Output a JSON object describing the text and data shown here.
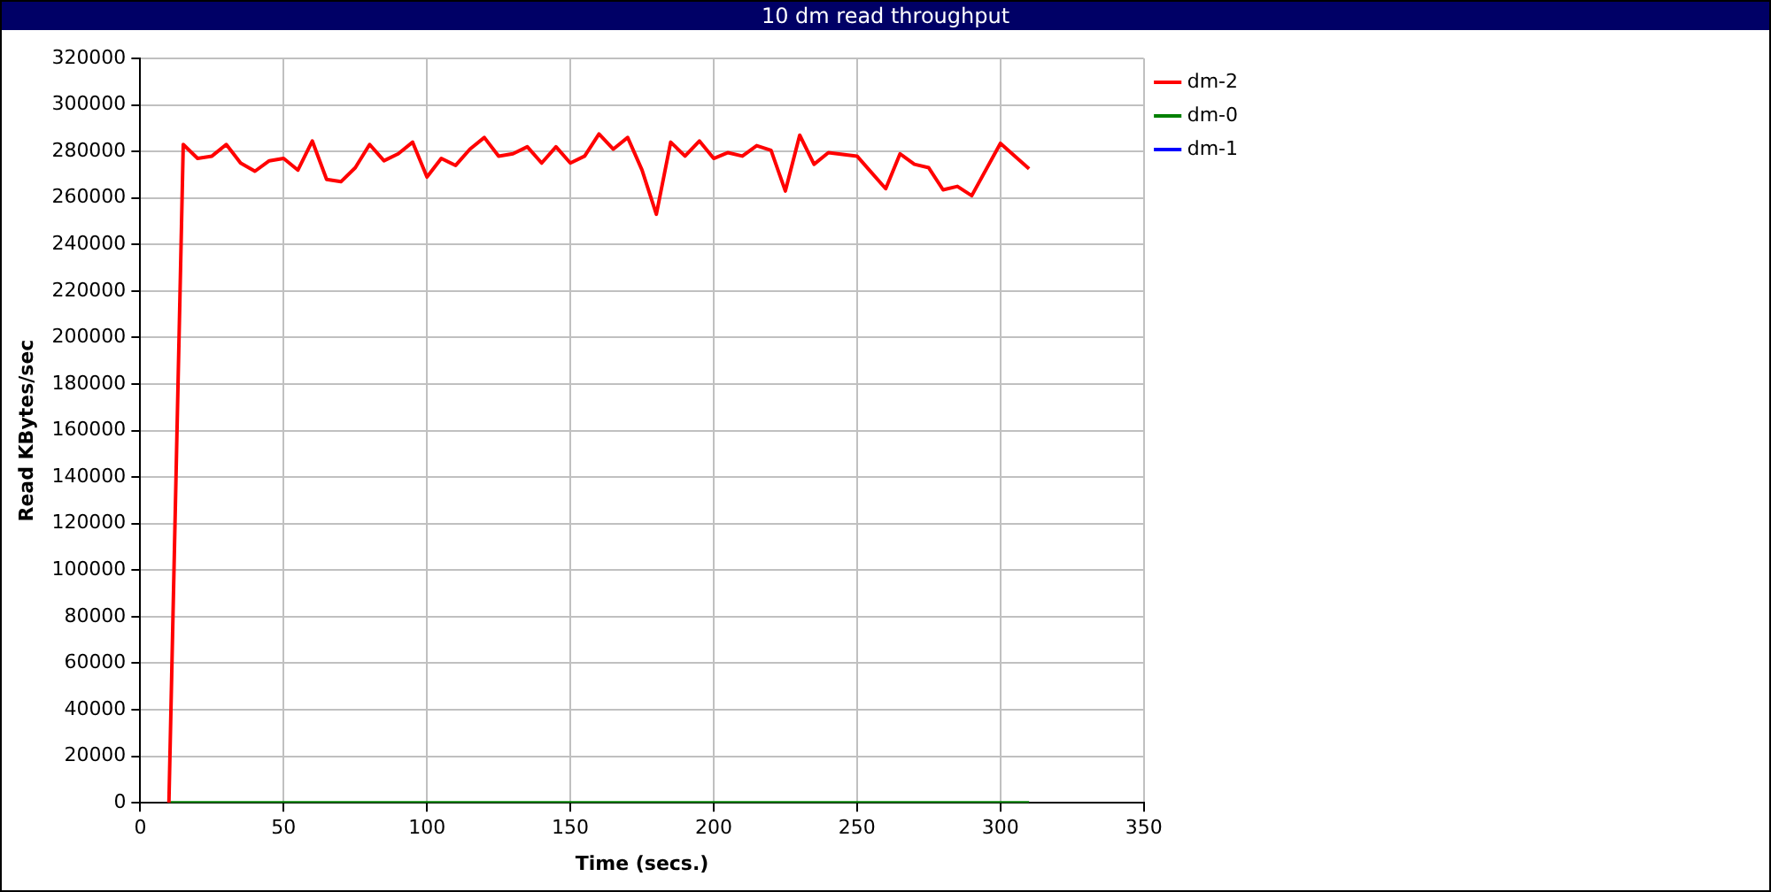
{
  "chart_data": {
    "type": "line",
    "title": "10 dm read throughput",
    "xlabel": "Time (secs.)",
    "ylabel": "Read KBytes/sec",
    "xlim": [
      0,
      350
    ],
    "xticks": [
      0,
      50,
      100,
      150,
      200,
      250,
      300,
      350
    ],
    "ylim": [
      0,
      320000
    ],
    "yticks": [
      0,
      20000,
      40000,
      60000,
      80000,
      100000,
      120000,
      140000,
      160000,
      180000,
      200000,
      220000,
      240000,
      260000,
      280000,
      300000,
      320000
    ],
    "grid": true,
    "legend": "right",
    "marker": "none",
    "line_style": "solid",
    "series": [
      {
        "name": "dm-2",
        "color": "#ff0000",
        "x": [
          10,
          15,
          20,
          25,
          30,
          35,
          40,
          45,
          50,
          55,
          60,
          65,
          70,
          75,
          80,
          85,
          90,
          95,
          100,
          105,
          110,
          115,
          120,
          125,
          130,
          135,
          140,
          145,
          150,
          155,
          160,
          165,
          170,
          175,
          180,
          185,
          190,
          195,
          200,
          205,
          210,
          215,
          220,
          225,
          230,
          235,
          240,
          250,
          255,
          260,
          265,
          270,
          275,
          280,
          285,
          290,
          300,
          310
        ],
        "values": [
          0,
          283000,
          277000,
          278000,
          283000,
          275000,
          271500,
          276000,
          277000,
          272000,
          284500,
          268000,
          267000,
          273000,
          283000,
          276000,
          279000,
          284000,
          269000,
          277000,
          274000,
          281000,
          286000,
          278000,
          279000,
          282000,
          275000,
          282000,
          275000,
          278000,
          287500,
          281000,
          286000,
          272000,
          253000,
          284000,
          278000,
          284500,
          277000,
          279500,
          278000,
          282500,
          280500,
          263000,
          287000,
          274500,
          279500,
          278000,
          271000,
          264000,
          279000,
          274500,
          273000,
          263500,
          265000,
          261000,
          283500,
          272500
        ]
      },
      {
        "name": "dm-0",
        "color": "#008000",
        "x": [
          10,
          310
        ],
        "values": [
          0,
          0
        ]
      },
      {
        "name": "dm-1",
        "color": "#0000ff"
      }
    ]
  }
}
